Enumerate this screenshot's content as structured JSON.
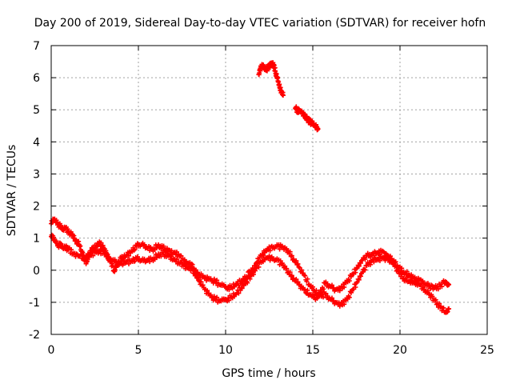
{
  "chart_data": {
    "type": "scatter",
    "title": "Day 200 of 2019, Sidereal Day-to-day VTEC variation (SDTVAR) for receiver hofn",
    "xlabel": "GPS time / hours",
    "ylabel": "SDTVAR / TECUs",
    "xlim": [
      0,
      25
    ],
    "ylim": [
      -2,
      7
    ],
    "xticks": [
      0,
      5,
      10,
      15,
      20,
      25
    ],
    "xtick_labels": [
      "0",
      "5",
      "10",
      "15",
      "20",
      "25"
    ],
    "yticks": [
      -2,
      -1,
      0,
      1,
      2,
      3,
      4,
      5,
      6,
      7
    ],
    "ytick_labels": [
      "-2",
      "-1",
      "0",
      "1",
      "2",
      "3",
      "4",
      "5",
      "6",
      "7"
    ],
    "grid": true,
    "marker": "+",
    "series": [
      {
        "name": "SDTVAR upper track",
        "color": "#ff0000",
        "points": [
          [
            0.0,
            1.45
          ],
          [
            0.2,
            1.6
          ],
          [
            0.4,
            1.45
          ],
          [
            0.6,
            1.3
          ],
          [
            0.8,
            1.3
          ],
          [
            1.0,
            1.2
          ],
          [
            1.2,
            1.1
          ],
          [
            1.4,
            0.95
          ],
          [
            1.6,
            0.8
          ],
          [
            1.8,
            0.55
          ],
          [
            2.0,
            0.2
          ],
          [
            2.2,
            0.5
          ],
          [
            2.4,
            0.7
          ],
          [
            2.6,
            0.75
          ],
          [
            2.8,
            0.85
          ],
          [
            3.0,
            0.7
          ],
          [
            3.2,
            0.45
          ],
          [
            3.4,
            0.3
          ],
          [
            3.6,
            0.0
          ],
          [
            3.8,
            0.2
          ],
          [
            4.0,
            0.35
          ],
          [
            4.3,
            0.45
          ],
          [
            4.6,
            0.6
          ],
          [
            4.9,
            0.75
          ],
          [
            5.2,
            0.8
          ],
          [
            5.5,
            0.7
          ],
          [
            5.8,
            0.65
          ],
          [
            6.1,
            0.75
          ],
          [
            6.4,
            0.7
          ],
          [
            6.7,
            0.6
          ],
          [
            7.0,
            0.55
          ],
          [
            7.3,
            0.5
          ],
          [
            7.6,
            0.3
          ],
          [
            7.9,
            0.2
          ],
          [
            8.2,
            0.05
          ],
          [
            8.5,
            -0.15
          ],
          [
            8.8,
            -0.25
          ],
          [
            9.1,
            -0.3
          ],
          [
            9.4,
            -0.35
          ],
          [
            9.7,
            -0.45
          ],
          [
            10.0,
            -0.5
          ],
          [
            10.3,
            -0.55
          ],
          [
            10.6,
            -0.45
          ],
          [
            10.9,
            -0.35
          ],
          [
            11.2,
            -0.2
          ],
          [
            11.5,
            0.0
          ],
          [
            11.8,
            0.25
          ],
          [
            12.1,
            0.5
          ],
          [
            12.4,
            0.65
          ],
          [
            12.7,
            0.7
          ],
          [
            13.0,
            0.75
          ],
          [
            13.3,
            0.7
          ],
          [
            13.6,
            0.6
          ],
          [
            13.9,
            0.35
          ],
          [
            14.2,
            0.1
          ],
          [
            14.5,
            -0.15
          ],
          [
            14.8,
            -0.45
          ],
          [
            15.1,
            -0.65
          ],
          [
            15.4,
            -0.75
          ],
          [
            15.7,
            -0.4
          ],
          [
            16.0,
            -0.5
          ],
          [
            16.3,
            -0.6
          ],
          [
            16.6,
            -0.55
          ],
          [
            16.9,
            -0.4
          ],
          [
            17.2,
            -0.2
          ],
          [
            17.5,
            0.05
          ],
          [
            17.8,
            0.3
          ],
          [
            18.1,
            0.45
          ],
          [
            18.4,
            0.5
          ],
          [
            18.7,
            0.55
          ],
          [
            19.0,
            0.6
          ],
          [
            19.3,
            0.45
          ],
          [
            19.6,
            0.3
          ],
          [
            19.9,
            0.1
          ],
          [
            20.2,
            -0.05
          ],
          [
            20.5,
            -0.15
          ],
          [
            20.8,
            -0.25
          ],
          [
            21.1,
            -0.3
          ],
          [
            21.4,
            -0.4
          ],
          [
            21.7,
            -0.5
          ],
          [
            22.0,
            -0.55
          ],
          [
            22.3,
            -0.5
          ],
          [
            22.6,
            -0.35
          ],
          [
            22.8,
            -0.45
          ]
        ]
      },
      {
        "name": "SDTVAR lower track",
        "color": "#ff0000",
        "points": [
          [
            0.0,
            1.05
          ],
          [
            0.2,
            0.95
          ],
          [
            0.4,
            0.8
          ],
          [
            0.6,
            0.75
          ],
          [
            0.8,
            0.7
          ],
          [
            1.0,
            0.65
          ],
          [
            1.3,
            0.5
          ],
          [
            1.6,
            0.45
          ],
          [
            1.9,
            0.4
          ],
          [
            2.2,
            0.45
          ],
          [
            2.5,
            0.55
          ],
          [
            2.8,
            0.6
          ],
          [
            3.1,
            0.5
          ],
          [
            3.4,
            0.35
          ],
          [
            3.7,
            0.25
          ],
          [
            4.0,
            0.2
          ],
          [
            4.3,
            0.25
          ],
          [
            4.6,
            0.3
          ],
          [
            4.9,
            0.35
          ],
          [
            5.2,
            0.3
          ],
          [
            5.5,
            0.3
          ],
          [
            5.8,
            0.35
          ],
          [
            6.1,
            0.45
          ],
          [
            6.4,
            0.5
          ],
          [
            6.7,
            0.45
          ],
          [
            7.0,
            0.35
          ],
          [
            7.3,
            0.25
          ],
          [
            7.6,
            0.15
          ],
          [
            7.9,
            0.05
          ],
          [
            8.2,
            -0.1
          ],
          [
            8.5,
            -0.35
          ],
          [
            8.8,
            -0.6
          ],
          [
            9.1,
            -0.8
          ],
          [
            9.4,
            -0.9
          ],
          [
            9.7,
            -0.95
          ],
          [
            10.0,
            -0.9
          ],
          [
            10.3,
            -0.85
          ],
          [
            10.6,
            -0.75
          ],
          [
            10.9,
            -0.55
          ],
          [
            11.2,
            -0.35
          ],
          [
            11.5,
            -0.15
          ],
          [
            11.8,
            0.1
          ],
          [
            12.1,
            0.3
          ],
          [
            12.4,
            0.4
          ],
          [
            12.7,
            0.35
          ],
          [
            13.0,
            0.3
          ],
          [
            13.3,
            0.15
          ],
          [
            13.6,
            -0.05
          ],
          [
            13.9,
            -0.25
          ],
          [
            14.2,
            -0.45
          ],
          [
            14.5,
            -0.6
          ],
          [
            14.8,
            -0.75
          ],
          [
            15.1,
            -0.85
          ],
          [
            15.4,
            -0.8
          ],
          [
            15.7,
            -0.75
          ],
          [
            16.0,
            -0.9
          ],
          [
            16.3,
            -1.0
          ],
          [
            16.6,
            -1.05
          ],
          [
            16.9,
            -0.95
          ],
          [
            17.2,
            -0.7
          ],
          [
            17.5,
            -0.4
          ],
          [
            17.8,
            -0.1
          ],
          [
            18.1,
            0.15
          ],
          [
            18.4,
            0.3
          ],
          [
            18.7,
            0.35
          ],
          [
            19.0,
            0.4
          ],
          [
            19.3,
            0.35
          ],
          [
            19.6,
            0.2
          ],
          [
            19.9,
            -0.05
          ],
          [
            20.2,
            -0.25
          ],
          [
            20.5,
            -0.35
          ],
          [
            20.8,
            -0.4
          ],
          [
            21.1,
            -0.45
          ],
          [
            21.4,
            -0.6
          ],
          [
            21.7,
            -0.75
          ],
          [
            22.0,
            -0.95
          ],
          [
            22.3,
            -1.15
          ],
          [
            22.6,
            -1.3
          ],
          [
            22.8,
            -1.2
          ]
        ]
      },
      {
        "name": "SDTVAR elevated segment",
        "color": "#ff0000",
        "points": [
          [
            11.9,
            6.1
          ],
          [
            12.0,
            6.3
          ],
          [
            12.1,
            6.4
          ],
          [
            12.2,
            6.35
          ],
          [
            12.3,
            6.25
          ],
          [
            12.4,
            6.3
          ],
          [
            12.5,
            6.35
          ],
          [
            12.6,
            6.4
          ],
          [
            12.7,
            6.45
          ],
          [
            12.8,
            6.3
          ],
          [
            12.9,
            6.1
          ],
          [
            13.0,
            5.9
          ],
          [
            13.1,
            5.7
          ],
          [
            13.2,
            5.55
          ],
          [
            13.3,
            5.45
          ],
          [
            14.0,
            5.05
          ],
          [
            14.1,
            5.0
          ],
          [
            14.2,
            4.95
          ],
          [
            14.3,
            4.95
          ],
          [
            14.4,
            4.9
          ],
          [
            14.5,
            4.85
          ],
          [
            14.6,
            4.75
          ],
          [
            14.7,
            4.7
          ],
          [
            14.8,
            4.65
          ],
          [
            14.9,
            4.6
          ],
          [
            15.0,
            4.55
          ],
          [
            15.1,
            4.5
          ],
          [
            15.2,
            4.45
          ],
          [
            15.3,
            4.4
          ]
        ]
      }
    ]
  }
}
